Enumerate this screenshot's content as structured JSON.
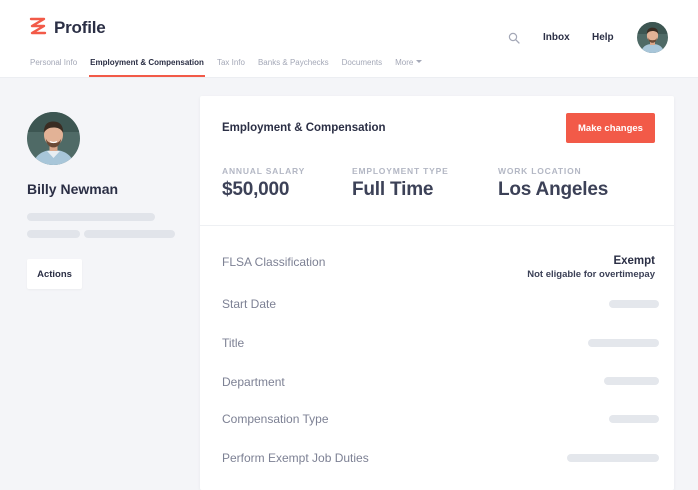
{
  "header": {
    "title": "Profile",
    "logo_icon": "zigzag-logo-icon",
    "accent_color": "#f25a48",
    "tabs": [
      {
        "label": "Personal Info",
        "active": false
      },
      {
        "label": "Employment & Compensation",
        "active": true
      },
      {
        "label": "Tax Info",
        "active": false
      },
      {
        "label": "Banks & Paychecks",
        "active": false
      },
      {
        "label": "Documents",
        "active": false
      },
      {
        "label": "More",
        "active": false
      }
    ],
    "inbox_label": "Inbox",
    "help_label": "Help"
  },
  "profile": {
    "name": "Billy Newman",
    "actions_label": "Actions"
  },
  "card": {
    "title": "Employment & Compensation",
    "make_changes_label": "Make changes",
    "stats": [
      {
        "label": "ANNUAL SALARY",
        "value": "$50,000"
      },
      {
        "label": "EMPLOYMENT TYPE",
        "value": "Full Time"
      },
      {
        "label": "WORK LOCATION",
        "value": "Los Angeles"
      }
    ],
    "rows": [
      {
        "label": "FLSA Classification",
        "value": "Exempt",
        "subvalue": "Not eligable for overtimepay"
      },
      {
        "label": "Start Date"
      },
      {
        "label": "Title"
      },
      {
        "label": "Department"
      },
      {
        "label": "Compensation Type"
      },
      {
        "label": "Perform Exempt Job Duties"
      }
    ]
  }
}
